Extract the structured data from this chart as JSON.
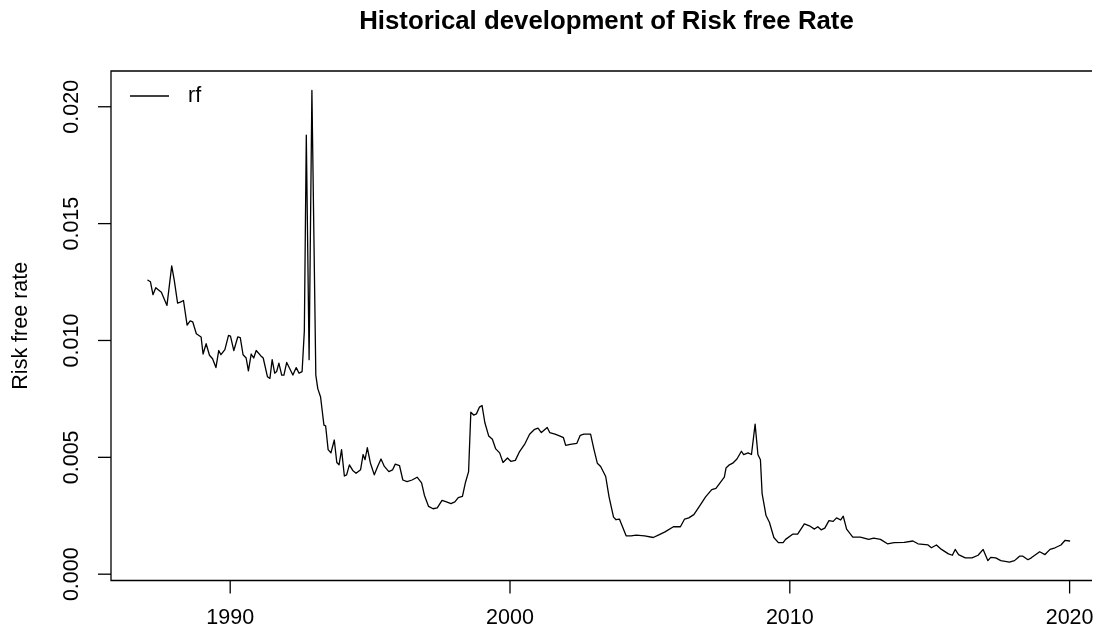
{
  "chart_data": {
    "type": "line",
    "title": "Historical development of Risk free Rate",
    "ylabel": "Risk free rate",
    "x": [
      1987.06,
      1987.15,
      1987.24,
      1987.34,
      1987.45,
      1987.54,
      1987.6,
      1987.74,
      1987.91,
      1988.0,
      1988.12,
      1988.22,
      1988.33,
      1988.46,
      1988.57,
      1988.66,
      1988.79,
      1988.96,
      1989.03,
      1989.14,
      1989.26,
      1989.37,
      1989.49,
      1989.59,
      1989.67,
      1989.81,
      1989.94,
      1990.01,
      1990.13,
      1990.27,
      1990.36,
      1990.46,
      1990.57,
      1990.65,
      1990.75,
      1990.84,
      1990.93,
      1991.09,
      1991.18,
      1991.33,
      1991.42,
      1991.5,
      1991.59,
      1991.66,
      1991.74,
      1991.84,
      1991.92,
      1992.02,
      1992.09,
      1992.24,
      1992.36,
      1992.46,
      1992.57,
      1992.65,
      1992.72,
      1992.82,
      1992.92,
      1993.06,
      1993.13,
      1993.23,
      1993.35,
      1993.41,
      1993.5,
      1993.6,
      1993.72,
      1993.81,
      1993.89,
      1993.98,
      1994.08,
      1994.16,
      1994.26,
      1994.38,
      1994.5,
      1994.66,
      1994.75,
      1994.82,
      1994.9,
      1995.01,
      1995.15,
      1995.27,
      1995.39,
      1995.51,
      1995.67,
      1995.8,
      1995.9,
      1996.05,
      1996.17,
      1996.32,
      1996.5,
      1996.68,
      1996.84,
      1996.94,
      1997.09,
      1997.25,
      1997.4,
      1997.57,
      1997.73,
      1997.89,
      1998.03,
      1998.15,
      1998.3,
      1998.4,
      1998.52,
      1998.6,
      1998.7,
      1998.8,
      1998.91,
      1999.0,
      1999.1,
      1999.24,
      1999.37,
      1999.49,
      1999.63,
      1999.75,
      1999.91,
      2000.03,
      2000.19,
      2000.33,
      2000.52,
      2000.7,
      2000.88,
      2001.0,
      2001.12,
      2001.33,
      2001.42,
      2001.61,
      2001.79,
      2001.91,
      2001.99,
      2002.15,
      2002.39,
      2002.51,
      2002.64,
      2002.88,
      2003.0,
      2003.12,
      2003.24,
      2003.42,
      2003.54,
      2003.7,
      2003.79,
      2003.91,
      2004.15,
      2004.33,
      2004.51,
      2004.81,
      2005.12,
      2005.3,
      2005.54,
      2005.84,
      2006.09,
      2006.24,
      2006.39,
      2006.57,
      2006.75,
      2006.99,
      2007.21,
      2007.36,
      2007.54,
      2007.66,
      2007.72,
      2007.84,
      2007.96,
      2008.11,
      2008.27,
      2008.35,
      2008.51,
      2008.63,
      2008.76,
      2008.86,
      2008.95,
      2009.01,
      2009.15,
      2009.27,
      2009.43,
      2009.59,
      2009.76,
      2009.85,
      2010.1,
      2010.28,
      2010.52,
      2010.7,
      2010.88,
      2011.0,
      2011.12,
      2011.25,
      2011.4,
      2011.55,
      2011.67,
      2011.82,
      2011.91,
      2012.03,
      2012.25,
      2012.52,
      2012.82,
      2013.0,
      2013.24,
      2013.49,
      2013.73,
      2014.09,
      2014.4,
      2014.58,
      2014.94,
      2015.06,
      2015.24,
      2015.42,
      2015.67,
      2015.81,
      2015.91,
      2016.03,
      2016.27,
      2016.51,
      2016.73,
      2016.91,
      2017.08,
      2017.18,
      2017.36,
      2017.54,
      2017.85,
      2018.03,
      2018.21,
      2018.33,
      2018.51,
      2018.63,
      2018.93,
      2019.12,
      2019.3,
      2019.48,
      2019.69,
      2019.84,
      2020.0
    ],
    "series": [
      {
        "name": "rf",
        "color": "#000000",
        "values": [
          0.01258,
          0.01251,
          0.01196,
          0.01226,
          0.01215,
          0.01206,
          0.01189,
          0.0115,
          0.01319,
          0.01258,
          0.0116,
          0.01164,
          0.01171,
          0.01066,
          0.01084,
          0.0108,
          0.01029,
          0.01015,
          0.00942,
          0.00986,
          0.00937,
          0.00922,
          0.00884,
          0.00957,
          0.00939,
          0.00961,
          0.01022,
          0.01019,
          0.00957,
          0.01015,
          0.01012,
          0.00939,
          0.00925,
          0.0087,
          0.00942,
          0.00925,
          0.00957,
          0.00935,
          0.00925,
          0.00845,
          0.00838,
          0.00918,
          0.0086,
          0.00867,
          0.00903,
          0.00852,
          0.00852,
          0.00906,
          0.00889,
          0.00852,
          0.00884,
          0.0086,
          0.00867,
          0.01041,
          0.01879,
          0.00918,
          0.0207,
          0.00852,
          0.00794,
          0.00758,
          0.00638,
          0.00635,
          0.00533,
          0.00519,
          0.00574,
          0.00478,
          0.00468,
          0.00533,
          0.0042,
          0.00425,
          0.00468,
          0.00444,
          0.00432,
          0.00447,
          0.00512,
          0.0049,
          0.00541,
          0.00476,
          0.00425,
          0.00461,
          0.00493,
          0.00461,
          0.00439,
          0.00446,
          0.00471,
          0.00465,
          0.00403,
          0.00396,
          0.00403,
          0.00415,
          0.00391,
          0.00338,
          0.0029,
          0.0028,
          0.00284,
          0.00316,
          0.00309,
          0.00302,
          0.00309,
          0.00328,
          0.00333,
          0.00389,
          0.00439,
          0.00693,
          0.00681,
          0.00686,
          0.00715,
          0.00722,
          0.00649,
          0.00591,
          0.00577,
          0.00536,
          0.00519,
          0.00478,
          0.00497,
          0.00483,
          0.00487,
          0.00522,
          0.00555,
          0.00599,
          0.0062,
          0.00625,
          0.00606,
          0.00628,
          0.00606,
          0.00599,
          0.00591,
          0.00584,
          0.00551,
          0.00555,
          0.0056,
          0.00594,
          0.00599,
          0.00599,
          0.00534,
          0.00475,
          0.00461,
          0.00418,
          0.00331,
          0.00244,
          0.00233,
          0.00236,
          0.00164,
          0.00164,
          0.00167,
          0.00164,
          0.00157,
          0.00167,
          0.00181,
          0.00203,
          0.00203,
          0.00236,
          0.00241,
          0.00255,
          0.00287,
          0.00331,
          0.00362,
          0.00367,
          0.00396,
          0.00415,
          0.00454,
          0.00468,
          0.00475,
          0.00493,
          0.00526,
          0.00512,
          0.00519,
          0.00512,
          0.00642,
          0.00512,
          0.0049,
          0.00345,
          0.00251,
          0.00222,
          0.00157,
          0.00135,
          0.00135,
          0.00149,
          0.00171,
          0.00171,
          0.00215,
          0.00207,
          0.00193,
          0.00203,
          0.0019,
          0.00197,
          0.00229,
          0.00226,
          0.00241,
          0.00232,
          0.00248,
          0.00193,
          0.00159,
          0.00159,
          0.00149,
          0.00154,
          0.00149,
          0.0013,
          0.00135,
          0.00136,
          0.00142,
          0.0013,
          0.00125,
          0.00113,
          0.00125,
          0.00106,
          0.00087,
          0.00081,
          0.00106,
          0.00084,
          0.0007,
          0.0007,
          0.00081,
          0.00106,
          0.00058,
          0.00072,
          0.0007,
          0.00058,
          0.00052,
          0.00058,
          0.00077,
          0.00077,
          0.00062,
          0.0007,
          0.00096,
          0.00084,
          0.00106,
          0.00113,
          0.00125,
          0.00145,
          0.00142
        ]
      }
    ],
    "xlim": [
      1985.74,
      2020.8
    ],
    "xticks": [
      1990,
      2000,
      2010,
      2020
    ],
    "ylim": [
      -0.00027,
      0.02153
    ],
    "yticks": [
      {
        "value": 0,
        "label": "0.000"
      },
      {
        "value": 0.005,
        "label": "0.005"
      },
      {
        "value": 0.01,
        "label": "0.010"
      },
      {
        "value": 0.015,
        "label": "0.015"
      },
      {
        "value": 0.02,
        "label": "0.020"
      }
    ],
    "legend": "top left"
  }
}
